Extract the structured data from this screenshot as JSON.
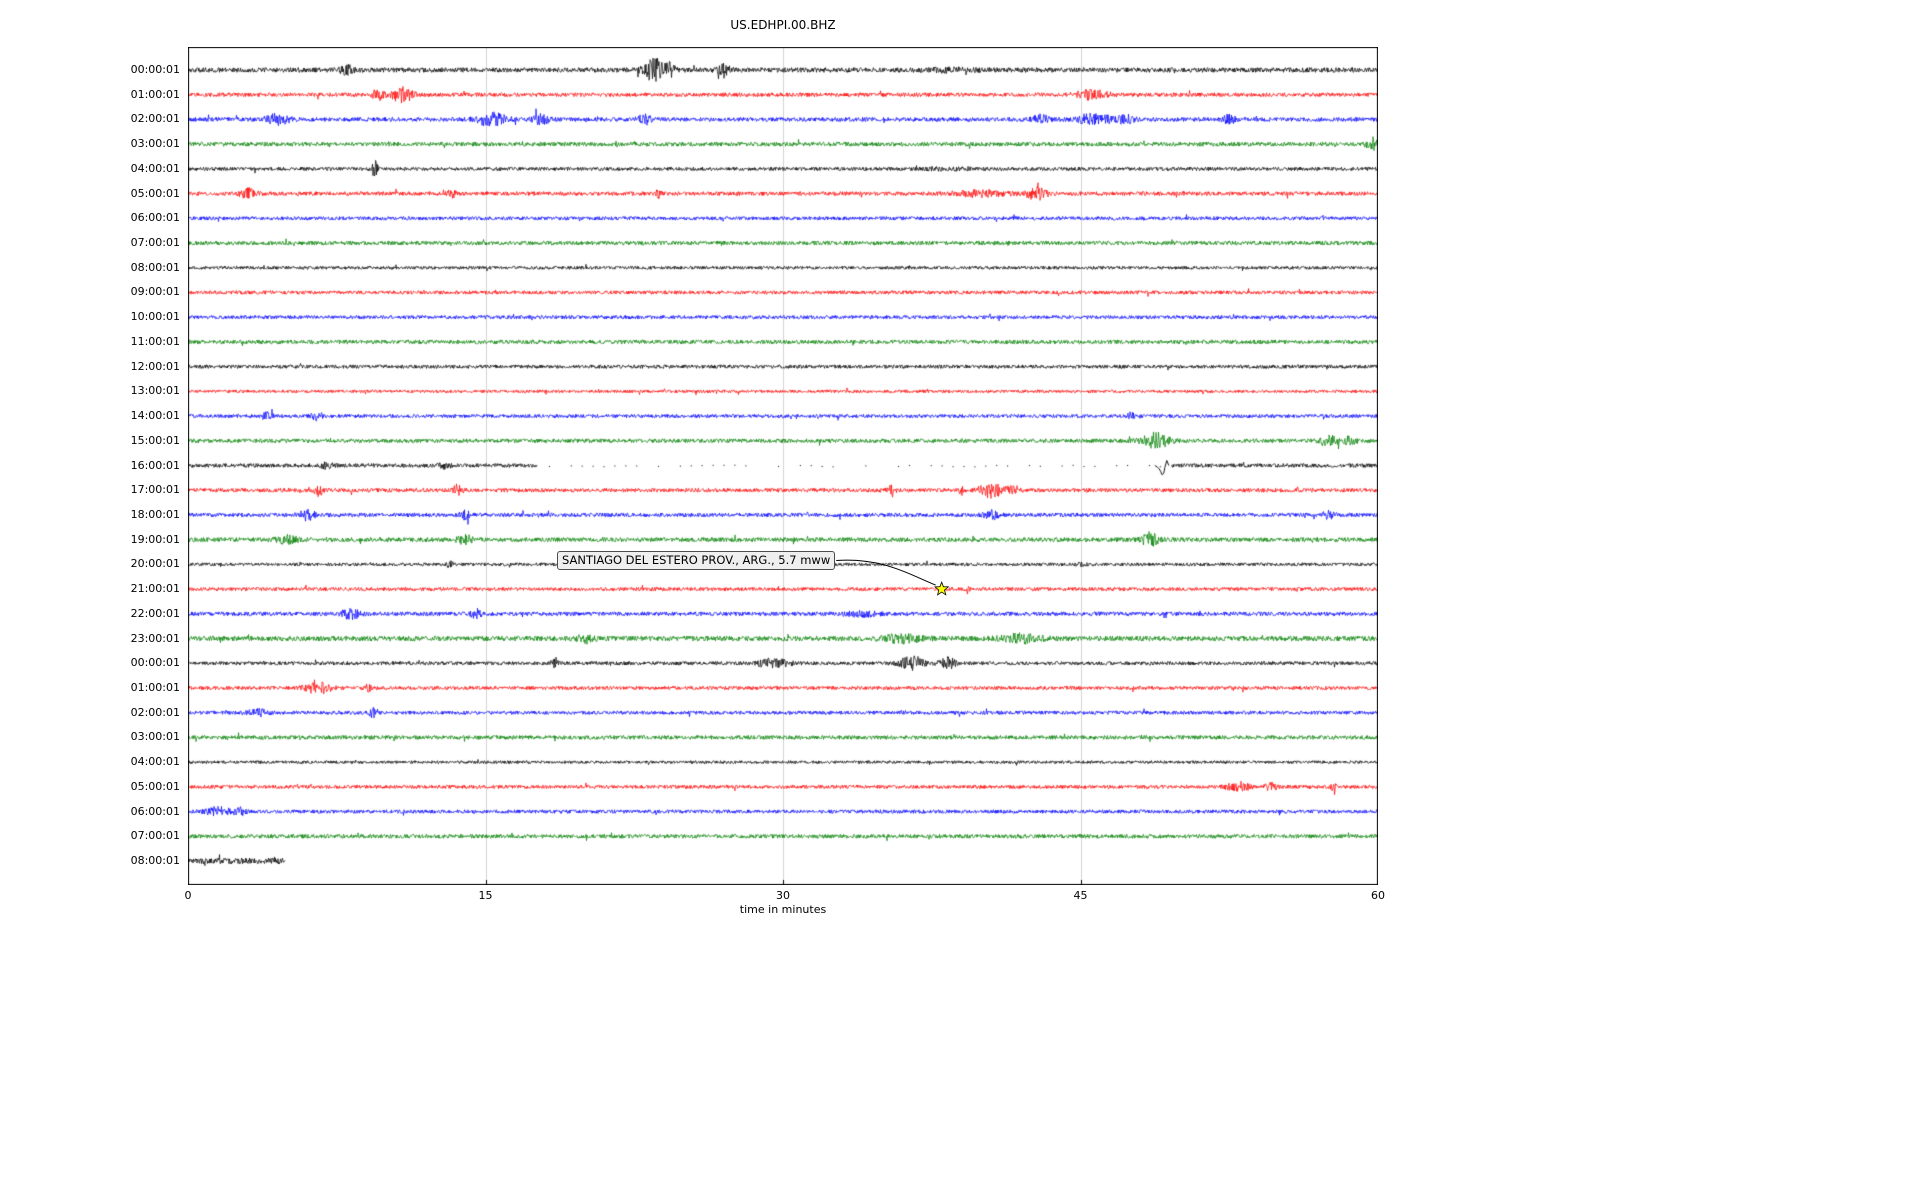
{
  "chart_data": {
    "type": "line",
    "subtype": "seismogram-helicorder",
    "title": "US.EDHPI.00.BHZ",
    "station": "US.EDHPI.00.BHZ",
    "xlabel": "time in minutes",
    "x_range": [
      0,
      60
    ],
    "x_ticks": [
      "0",
      "15",
      "30",
      "45",
      "60"
    ],
    "grid_minutes": [
      15,
      30,
      45
    ],
    "grid_on": true,
    "minutes_per_row": 60,
    "palette": [
      "#000000",
      "#ff0000",
      "#0000ff",
      "#008000"
    ],
    "rows": [
      {
        "label": "00:00:01",
        "color": "#000000",
        "base": 2.4,
        "events": [
          [
            8,
            0.3,
            1.8
          ],
          [
            23.5,
            0.5,
            4.5
          ],
          [
            24.3,
            0.25,
            2.5
          ],
          [
            27,
            0.3,
            2.5
          ],
          [
            38.5,
            1.2,
            0.5
          ]
        ]
      },
      {
        "label": "01:00:01",
        "color": "#ff0000",
        "base": 2.0,
        "events": [
          [
            9.6,
            0.3,
            2.8
          ],
          [
            10.8,
            0.5,
            3.6
          ],
          [
            45.6,
            0.8,
            2.2
          ]
        ]
      },
      {
        "label": "02:00:01",
        "color": "#0000ff",
        "base": 2.1,
        "events": [
          [
            4.5,
            0.6,
            2.2
          ],
          [
            15.3,
            0.7,
            3.2
          ],
          [
            17.8,
            0.4,
            2.0
          ],
          [
            23,
            0.3,
            2.3
          ],
          [
            43,
            0.5,
            1.8
          ],
          [
            45.7,
            0.9,
            2.4
          ],
          [
            47.3,
            0.4,
            1.8
          ],
          [
            52.5,
            0.3,
            1.8
          ]
        ]
      },
      {
        "label": "03:00:01",
        "color": "#008000",
        "base": 2.1,
        "events": [
          [
            59.7,
            0.3,
            3.0
          ]
        ]
      },
      {
        "label": "04:00:01",
        "color": "#000000",
        "base": 1.8,
        "events": [
          [
            9.4,
            0.15,
            4.5
          ],
          [
            38.5,
            1.5,
            0.5
          ]
        ]
      },
      {
        "label": "05:00:01",
        "color": "#ff0000",
        "base": 2.0,
        "events": [
          [
            3,
            0.4,
            2.2
          ],
          [
            13.3,
            0.2,
            1.8
          ],
          [
            40,
            1.2,
            1.4
          ],
          [
            42.8,
            0.5,
            2.8
          ],
          [
            23.7,
            0.15,
            1.8
          ]
        ]
      },
      {
        "label": "06:00:01",
        "color": "#0000ff",
        "base": 1.8,
        "events": []
      },
      {
        "label": "07:00:01",
        "color": "#008000",
        "base": 2.0,
        "events": []
      },
      {
        "label": "08:00:01",
        "color": "#000000",
        "base": 1.6,
        "events": []
      },
      {
        "label": "09:00:01",
        "color": "#ff0000",
        "base": 1.8,
        "events": []
      },
      {
        "label": "10:00:01",
        "color": "#0000ff",
        "base": 1.8,
        "events": []
      },
      {
        "label": "11:00:01",
        "color": "#008000",
        "base": 2.0,
        "events": []
      },
      {
        "label": "12:00:01",
        "color": "#000000",
        "base": 1.8,
        "events": []
      },
      {
        "label": "13:00:01",
        "color": "#ff0000",
        "base": 1.5,
        "events": []
      },
      {
        "label": "14:00:01",
        "color": "#0000ff",
        "base": 1.8,
        "events": [
          [
            4,
            0.3,
            1.8
          ],
          [
            6.5,
            0.3,
            1.8
          ],
          [
            47.5,
            0.2,
            1.8
          ]
        ]
      },
      {
        "label": "15:00:01",
        "color": "#008000",
        "base": 2.0,
        "events": [
          [
            48.8,
            0.7,
            3.8
          ],
          [
            57.5,
            0.5,
            2.2
          ],
          [
            58.6,
            0.3,
            1.8
          ]
        ]
      },
      {
        "label": "16:00:01",
        "color": "#000000",
        "base": 2.0,
        "events": [
          [
            7,
            0.3,
            1.4
          ],
          [
            13,
            0.3,
            1.4
          ]
        ],
        "quiet": [
          17.6,
          49.6
        ],
        "pulse": 49.1
      },
      {
        "label": "17:00:01",
        "color": "#ff0000",
        "base": 2.0,
        "events": [
          [
            6.6,
            0.2,
            2.8
          ],
          [
            13.6,
            0.2,
            2.8
          ],
          [
            35.5,
            0.2,
            2.6
          ],
          [
            39,
            0.15,
            1.8
          ],
          [
            40.5,
            0.6,
            3.2
          ],
          [
            41.6,
            0.3,
            2.2
          ]
        ]
      },
      {
        "label": "18:00:01",
        "color": "#0000ff",
        "base": 2.0,
        "events": [
          [
            6,
            0.4,
            2.2
          ],
          [
            14,
            0.3,
            1.8
          ],
          [
            40.5,
            0.4,
            1.8
          ],
          [
            57.5,
            0.3,
            1.6
          ]
        ]
      },
      {
        "label": "19:00:01",
        "color": "#008000",
        "base": 2.2,
        "events": [
          [
            5,
            0.5,
            1.6
          ],
          [
            14,
            0.4,
            1.8
          ],
          [
            48.5,
            0.4,
            2.8
          ]
        ]
      },
      {
        "label": "20:00:01",
        "color": "#000000",
        "base": 1.6,
        "events": [
          [
            13.2,
            0.15,
            2.2
          ],
          [
            45,
            0.2,
            1.4
          ]
        ]
      },
      {
        "label": "21:00:01",
        "color": "#ff0000",
        "base": 1.8,
        "events": [
          [
            39.3,
            0.1,
            2.8
          ]
        ]
      },
      {
        "label": "22:00:01",
        "color": "#0000ff",
        "base": 2.0,
        "events": [
          [
            8.2,
            0.5,
            2.2
          ],
          [
            14.5,
            0.3,
            2.2
          ],
          [
            34,
            0.8,
            1.3
          ]
        ]
      },
      {
        "label": "23:00:01",
        "color": "#008000",
        "base": 2.5,
        "events": [
          [
            20,
            0.5,
            1.2
          ],
          [
            36,
            1.0,
            1.4
          ],
          [
            42,
            1.0,
            1.4
          ]
        ]
      },
      {
        "label": "00:00:01",
        "color": "#000000",
        "base": 1.8,
        "events": [
          [
            18.5,
            0.2,
            1.8
          ],
          [
            29.5,
            0.8,
            2.2
          ],
          [
            36.5,
            0.6,
            3.6
          ],
          [
            38.3,
            0.4,
            3.0
          ]
        ]
      },
      {
        "label": "01:00:01",
        "color": "#ff0000",
        "base": 1.8,
        "events": [
          [
            6.6,
            0.7,
            2.8
          ],
          [
            9.1,
            0.2,
            1.8
          ]
        ]
      },
      {
        "label": "02:00:01",
        "color": "#0000ff",
        "base": 1.8,
        "events": [
          [
            3.5,
            0.5,
            1.8
          ],
          [
            9.3,
            0.12,
            4.5
          ]
        ]
      },
      {
        "label": "03:00:01",
        "color": "#008000",
        "base": 2.0,
        "events": []
      },
      {
        "label": "04:00:01",
        "color": "#000000",
        "base": 1.5,
        "events": []
      },
      {
        "label": "05:00:01",
        "color": "#ff0000",
        "base": 1.8,
        "events": [
          [
            53,
            0.6,
            2.2
          ],
          [
            54.6,
            0.3,
            1.8
          ],
          [
            57.8,
            0.15,
            3.6
          ]
        ]
      },
      {
        "label": "06:00:01",
        "color": "#0000ff",
        "base": 1.8,
        "events": [
          [
            1.5,
            0.6,
            2.2
          ],
          [
            2.6,
            0.3,
            1.8
          ]
        ]
      },
      {
        "label": "07:00:01",
        "color": "#008000",
        "base": 2.0,
        "events": []
      },
      {
        "label": "08:00:01",
        "color": "#000000",
        "base": 3.0,
        "events": [],
        "end": 4.9
      }
    ],
    "annotation": {
      "text": "SANTIAGO DEL ESTERO PROV., ARG., 5.7 mww",
      "row": "21:00:01",
      "minute": 38,
      "marker": "star-icon",
      "marker_color": "#ffff00",
      "marker_edge_color": "#000000"
    }
  }
}
